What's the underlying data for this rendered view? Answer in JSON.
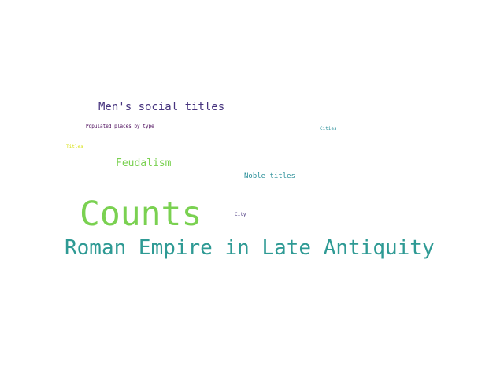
{
  "words": [
    {
      "text": "Roman Empire in Late Antiquity",
      "color": "#2e9a94"
    },
    {
      "text": "Counts",
      "color": "#7ad151"
    },
    {
      "text": "Men's social titles",
      "color": "#46337e"
    },
    {
      "text": "Feudalism",
      "color": "#7ad151"
    },
    {
      "text": "Noble titles",
      "color": "#2a8f99"
    },
    {
      "text": "Populated places by type",
      "color": "#440154"
    },
    {
      "text": "Titles",
      "color": "#d8e219"
    },
    {
      "text": "Cities",
      "color": "#2a8f99"
    },
    {
      "text": "City",
      "color": "#46337e"
    }
  ]
}
